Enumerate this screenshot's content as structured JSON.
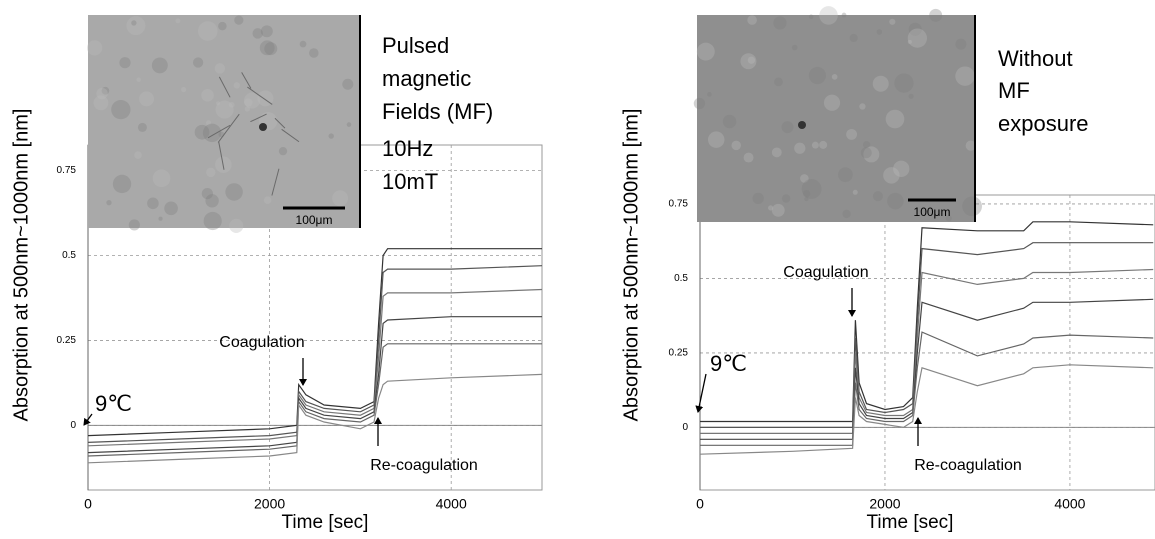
{
  "chart_data": [
    {
      "type": "line",
      "x_label": "Time [sec]",
      "y_label": "Absorption at 500nm~1000nm [nm]",
      "x": [
        0,
        1000,
        2000,
        2300,
        2320,
        2400,
        2600,
        3000,
        3150,
        3200,
        3250,
        3300,
        4000,
        5000
      ],
      "series": [
        {
          "color": "#333333",
          "values": [
            -0.03,
            -0.02,
            -0.01,
            0.0,
            0.12,
            0.09,
            0.06,
            0.05,
            0.07,
            0.3,
            0.5,
            0.52,
            0.52,
            0.52
          ]
        },
        {
          "color": "#555555",
          "values": [
            -0.05,
            -0.04,
            -0.03,
            -0.02,
            0.1,
            0.07,
            0.05,
            0.04,
            0.06,
            0.25,
            0.45,
            0.46,
            0.46,
            0.47
          ]
        },
        {
          "color": "#777777",
          "values": [
            -0.06,
            -0.05,
            -0.04,
            -0.03,
            0.09,
            0.06,
            0.04,
            0.03,
            0.05,
            0.2,
            0.38,
            0.39,
            0.39,
            0.4
          ]
        },
        {
          "color": "#444444",
          "values": [
            -0.08,
            -0.07,
            -0.06,
            -0.05,
            0.08,
            0.05,
            0.03,
            0.02,
            0.04,
            0.15,
            0.3,
            0.31,
            0.32,
            0.32
          ]
        },
        {
          "color": "#666666",
          "values": [
            -0.09,
            -0.08,
            -0.07,
            -0.06,
            0.07,
            0.04,
            0.02,
            0.01,
            0.03,
            0.12,
            0.23,
            0.24,
            0.24,
            0.24
          ]
        },
        {
          "color": "#888888",
          "values": [
            -0.11,
            -0.1,
            -0.09,
            -0.08,
            0.06,
            0.03,
            0.01,
            -0.01,
            0.01,
            0.08,
            0.12,
            0.13,
            0.14,
            0.15
          ]
        }
      ],
      "xlim": [
        0,
        5000
      ],
      "ylim": [
        -0.19,
        0.825
      ],
      "xticks": [
        0,
        2000,
        4000
      ],
      "yticks": [
        0,
        0.25,
        0.5,
        0.75
      ],
      "grid": true,
      "annotations": [
        "9℃",
        "Coagulation",
        "Re-coagulation"
      ],
      "inset": {
        "lines": [
          "Pulsed",
          "magnetic",
          "Fields (MF)",
          "10Hz",
          "10mT"
        ],
        "scale_bar": "100μm"
      }
    },
    {
      "type": "line",
      "x_label": "Time [sec]",
      "y_label": "Absorption at 500nm~1000nm [nm]",
      "x": [
        0,
        1000,
        1650,
        1680,
        1720,
        1800,
        2000,
        2200,
        2300,
        2350,
        2400,
        3000,
        3500,
        3600,
        4000,
        4900
      ],
      "series": [
        {
          "color": "#333333",
          "values": [
            0.02,
            0.02,
            0.02,
            0.36,
            0.15,
            0.08,
            0.06,
            0.07,
            0.1,
            0.4,
            0.67,
            0.66,
            0.66,
            0.69,
            0.69,
            0.68
          ]
        },
        {
          "color": "#555555",
          "values": [
            0.0,
            0.0,
            0.0,
            0.3,
            0.12,
            0.06,
            0.05,
            0.06,
            0.08,
            0.35,
            0.6,
            0.58,
            0.6,
            0.62,
            0.62,
            0.62
          ]
        },
        {
          "color": "#777777",
          "values": [
            -0.02,
            -0.02,
            -0.02,
            0.25,
            0.1,
            0.05,
            0.04,
            0.04,
            0.06,
            0.3,
            0.52,
            0.48,
            0.5,
            0.52,
            0.52,
            0.53
          ]
        },
        {
          "color": "#444444",
          "values": [
            -0.04,
            -0.04,
            -0.04,
            0.2,
            0.08,
            0.04,
            0.03,
            0.03,
            0.05,
            0.25,
            0.42,
            0.36,
            0.4,
            0.42,
            0.42,
            0.43
          ]
        },
        {
          "color": "#666666",
          "values": [
            -0.06,
            -0.06,
            -0.06,
            0.15,
            0.06,
            0.03,
            0.02,
            0.02,
            0.04,
            0.2,
            0.32,
            0.24,
            0.28,
            0.3,
            0.31,
            0.3
          ]
        },
        {
          "color": "#888888",
          "values": [
            -0.09,
            -0.08,
            -0.07,
            0.1,
            0.04,
            0.02,
            0.01,
            0.0,
            0.02,
            0.12,
            0.2,
            0.14,
            0.18,
            0.2,
            0.21,
            0.2
          ]
        }
      ],
      "xlim": [
        0,
        4920
      ],
      "ylim": [
        -0.21,
        0.78
      ],
      "xticks": [
        0,
        2000,
        4000
      ],
      "yticks": [
        0,
        0.25,
        0.5,
        0.75
      ],
      "grid": true,
      "annotations": [
        "9℃",
        "Coagulation",
        "Re-coagulation"
      ],
      "inset": {
        "lines": [
          "Without",
          "MF",
          "exposure"
        ],
        "scale_bar": "100μm"
      }
    }
  ]
}
